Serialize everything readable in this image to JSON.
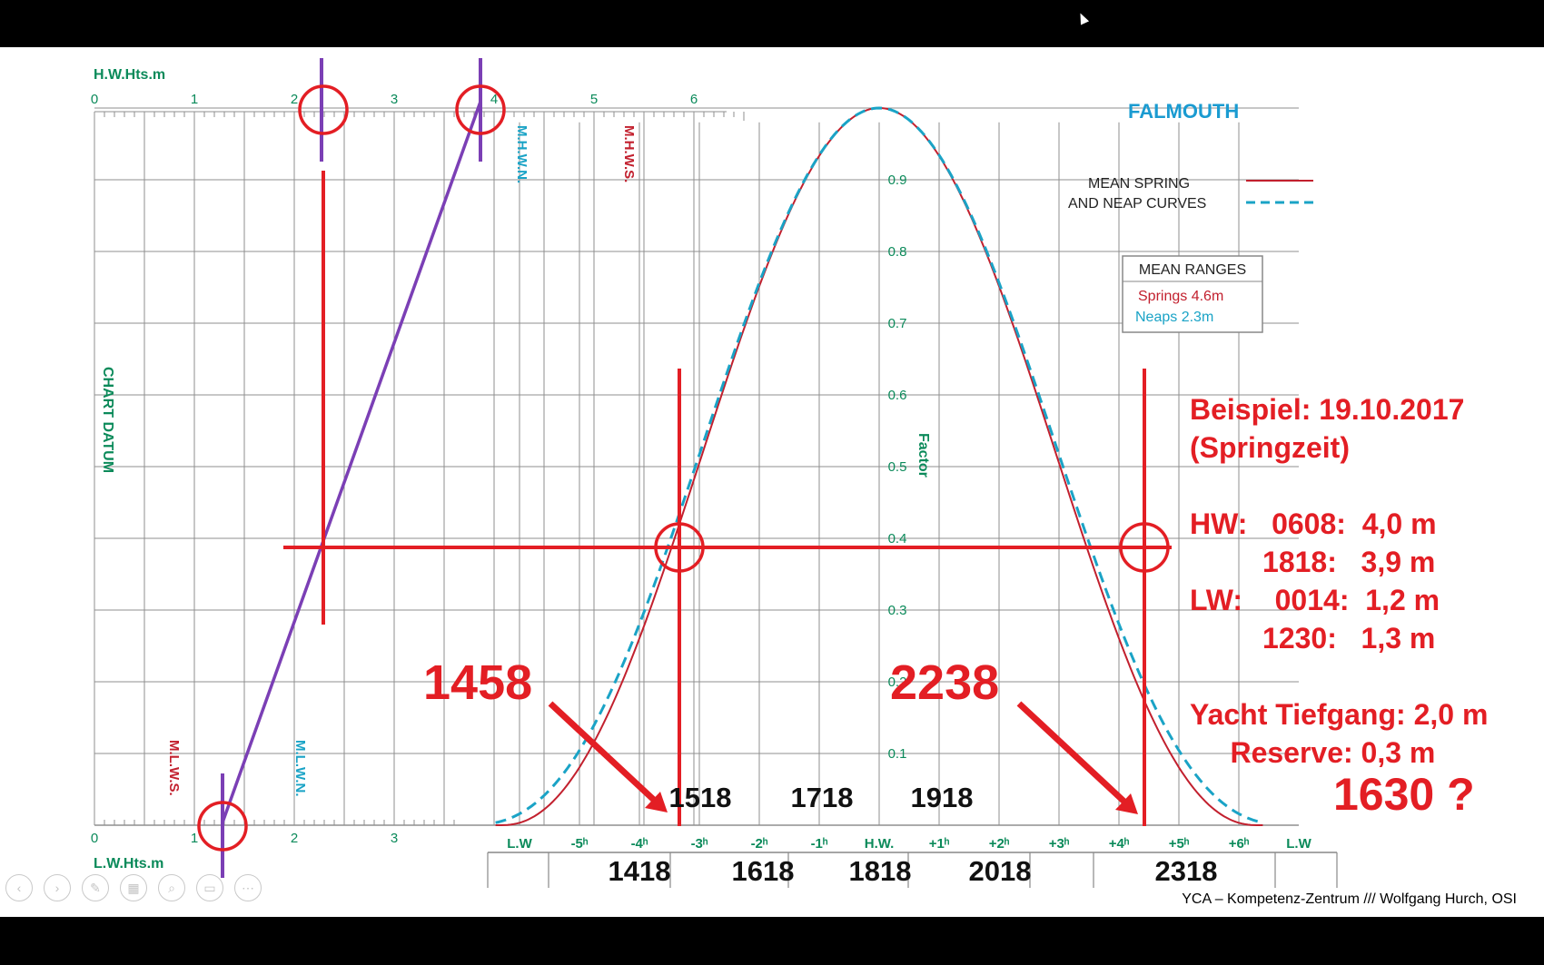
{
  "colors": {
    "spring": "#c2202e",
    "neap": "#1aa3c6",
    "grid": "#8f8f8f",
    "teal_text": "#0b8a5a",
    "red_overlay": "#e31e24",
    "purple": "#7b3fb5",
    "title_blue": "#1a9bd1"
  },
  "chart": {
    "title": "FALMOUTH",
    "top_axis_label": "H.W.Hts.m",
    "bottom_axis_label": "L.W.Hts.m",
    "chart_datum_label": "CHART DATUM",
    "factor_label": "Factor",
    "mhwn_label": "M.H.W.N.",
    "mhws_label": "M.H.W.S.",
    "mlws_label": "M.L.W.S.",
    "mlwn_label": "M.L.W.N.",
    "top_ticks": [
      "0",
      "1",
      "2",
      "3",
      "4",
      "5",
      "6"
    ],
    "bottom_ticks": [
      "0",
      "1",
      "2",
      "3"
    ],
    "factor_ticks": [
      "0.9",
      "0.8",
      "0.7",
      "0.6",
      "0.5",
      "0.4",
      "0.3",
      "0.2",
      "0.1"
    ],
    "time_ticks": [
      "L.W",
      "-5ʰ",
      "-4ʰ",
      "-3ʰ",
      "-2ʰ",
      "-1ʰ",
      "H.W.",
      "+1ʰ",
      "+2ʰ",
      "+3ʰ",
      "+4ʰ",
      "+5ʰ",
      "+6ʰ",
      "L.W"
    ],
    "legend": {
      "line1": "MEAN SPRING",
      "line2": "AND NEAP CURVES"
    },
    "ranges": {
      "title": "MEAN RANGES",
      "springs": "Springs  4.6m",
      "neaps": "Neaps    2.3m"
    }
  },
  "annotations": {
    "time_row_upper": [
      "1518",
      "1718",
      "1918"
    ],
    "time_row_lower": [
      "1418",
      "1618",
      "1818",
      "2018",
      "2318"
    ],
    "big_left": "1458",
    "big_right": "2238",
    "question": "1630 ?",
    "notes": "Beispiel: 19.10.2017\n(Springzeit)\n\nHW:   0608:  4,0 m\n         1818:   3,9 m\nLW:    0014:  1,2 m\n         1230:   1,3 m\n\nYacht Tiefgang: 2,0 m\n     Reserve: 0,3 m"
  },
  "footer": {
    "credit": "YCA – Kompetenz-Zentrum  ///  Wolfgang Hurch, OSI"
  },
  "toolbar": [
    {
      "name": "previous-icon",
      "glyph": "‹"
    },
    {
      "name": "next-icon",
      "glyph": "›"
    },
    {
      "name": "pen-icon",
      "glyph": "✎"
    },
    {
      "name": "slides-icon",
      "glyph": "▦"
    },
    {
      "name": "zoom-icon",
      "glyph": "⌕"
    },
    {
      "name": "subtitles-icon",
      "glyph": "▭"
    },
    {
      "name": "more-icon",
      "glyph": "⋯"
    }
  ]
}
